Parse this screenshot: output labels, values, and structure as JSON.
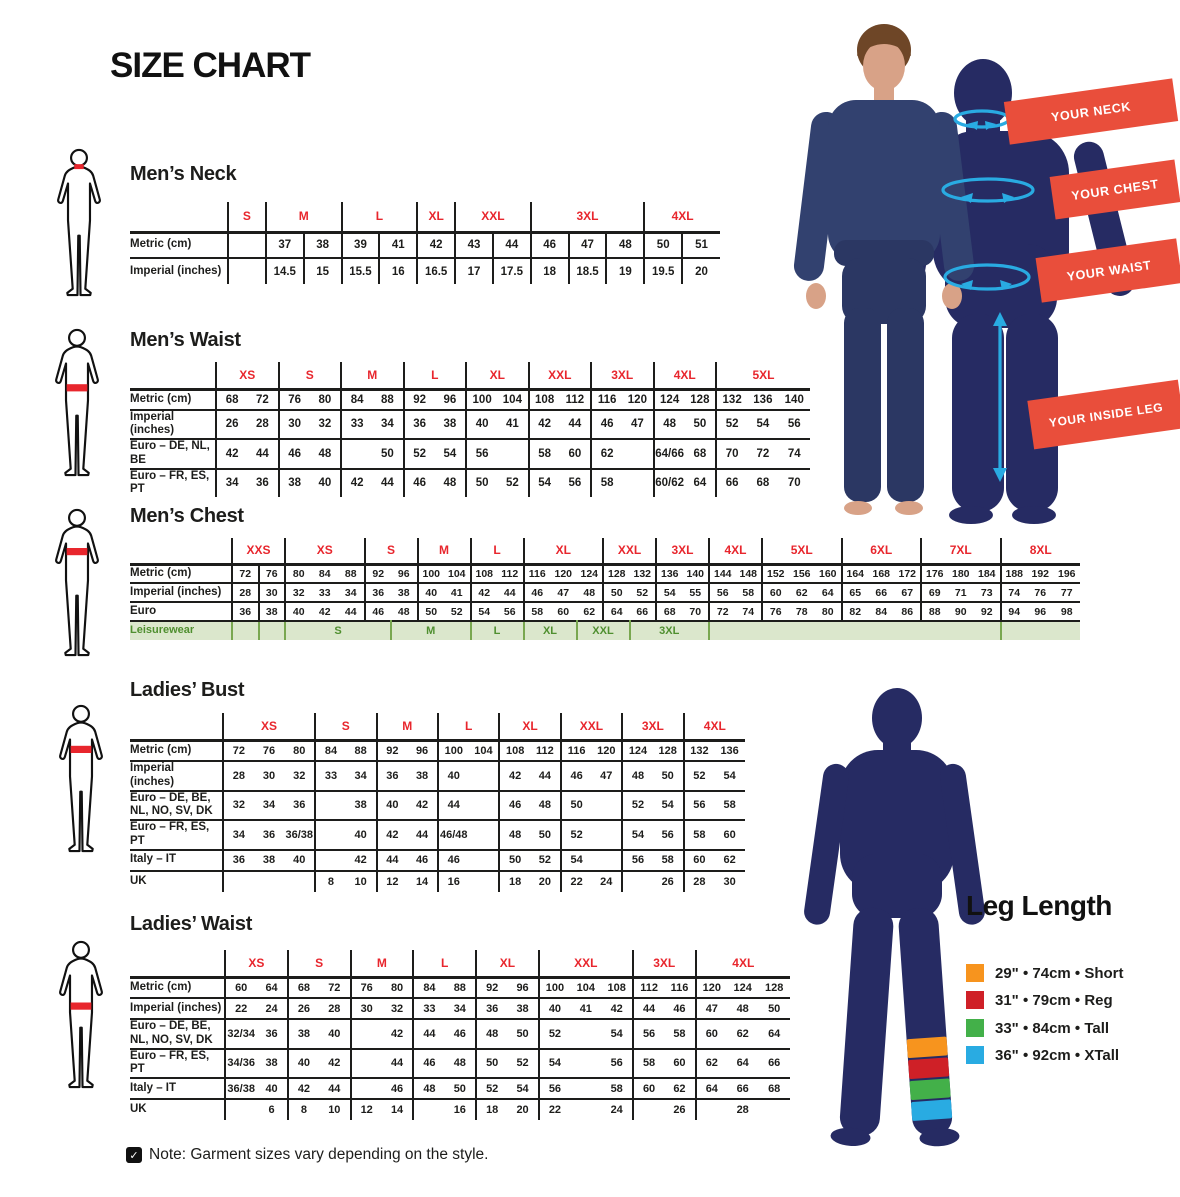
{
  "page_title": "SIZE CHART",
  "note_text": "Note: Garment sizes vary depending on the style.",
  "note_icon": "checkbox-checked",
  "colors": {
    "red": "#e8262d",
    "banner_red": "#e94e3b",
    "navy": "#262b63",
    "cyan": "#29abe2",
    "leisure_green": "#4f8f2f",
    "leisure_bg": "#dbe7cc",
    "leisure_border": "#79a750",
    "skin": "#d8a287",
    "hair": "#6e4627",
    "shirt": "#32416f",
    "pants": "#2b3763",
    "ink": "#1d1d1b"
  },
  "banners": [
    "YOUR NECK",
    "YOUR CHEST",
    "YOUR WAIST",
    "YOUR INSIDE LEG"
  ],
  "leg_length": {
    "title": "Leg Length",
    "items": [
      {
        "color": "#f7941e",
        "label": "29\" • 74cm • Short"
      },
      {
        "color": "#cf2027",
        "label": "31\" • 79cm • Reg"
      },
      {
        "color": "#43b049",
        "label": "33\" • 84cm • Tall"
      },
      {
        "color": "#29abe2",
        "label": "36\" • 92cm • XTall"
      }
    ]
  },
  "tables": [
    {
      "id": "mens-neck",
      "title": "Men’s Neck",
      "figure_band": "neck",
      "groups": [
        {
          "label": "S",
          "span": 1
        },
        {
          "label": "M",
          "span": 2
        },
        {
          "label": "L",
          "span": 2
        },
        {
          "label": "XL",
          "span": 1
        },
        {
          "label": "XXL",
          "span": 2
        },
        {
          "label": "3XL",
          "span": 3
        },
        {
          "label": "4XL",
          "span": 2
        }
      ],
      "rows": [
        {
          "label": "Metric (cm)",
          "cells": [
            "",
            "37",
            "38",
            "39",
            "41",
            "42",
            "43",
            "44",
            "46",
            "47",
            "48",
            "50",
            "51"
          ]
        },
        {
          "label": "Imperial (inches)",
          "cells": [
            "",
            "14.5",
            "15",
            "15.5",
            "16",
            "16.5",
            "17",
            "17.5",
            "18",
            "18.5",
            "19",
            "19.5",
            "20"
          ]
        }
      ]
    },
    {
      "id": "mens-waist",
      "title": "Men’s Waist",
      "figure_band": "waist",
      "groups": [
        {
          "label": "XS",
          "span": 2
        },
        {
          "label": "S",
          "span": 2
        },
        {
          "label": "M",
          "span": 2
        },
        {
          "label": "L",
          "span": 2
        },
        {
          "label": "XL",
          "span": 2
        },
        {
          "label": "XXL",
          "span": 2
        },
        {
          "label": "3XL",
          "span": 2
        },
        {
          "label": "4XL",
          "span": 2
        },
        {
          "label": "5XL",
          "span": 3
        }
      ],
      "rows": [
        {
          "label": "Metric (cm)",
          "cells": [
            "68",
            "72",
            "76",
            "80",
            "84",
            "88",
            "92",
            "96",
            "100",
            "104",
            "108",
            "112",
            "116",
            "120",
            "124",
            "128",
            "132",
            "136",
            "140"
          ]
        },
        {
          "label": "Imperial (inches)",
          "cells": [
            "26",
            "28",
            "30",
            "32",
            "33",
            "34",
            "36",
            "38",
            "40",
            "41",
            "42",
            "44",
            "46",
            "47",
            "48",
            "50",
            "52",
            "54",
            "56"
          ]
        },
        {
          "label": "Euro – DE, NL, BE",
          "cells": [
            "42",
            "44",
            "46",
            "48",
            "",
            "50",
            "52",
            "54",
            "56",
            "",
            "58",
            "60",
            "62",
            "",
            "64/66",
            "68",
            "70",
            "72",
            "74"
          ]
        },
        {
          "label": "Euro – FR, ES, PT",
          "cells": [
            "34",
            "36",
            "38",
            "40",
            "42",
            "44",
            "46",
            "48",
            "50",
            "52",
            "54",
            "56",
            "58",
            "",
            "60/62",
            "64",
            "66",
            "68",
            "70"
          ]
        }
      ]
    },
    {
      "id": "mens-chest",
      "title": "Men’s Chest",
      "figure_band": "chest",
      "groups": [
        {
          "label": "XXS",
          "span": 2
        },
        {
          "label": "XS",
          "span": 3
        },
        {
          "label": "S",
          "span": 2
        },
        {
          "label": "M",
          "span": 2
        },
        {
          "label": "L",
          "span": 2
        },
        {
          "label": "XL",
          "span": 3
        },
        {
          "label": "XXL",
          "span": 2
        },
        {
          "label": "3XL",
          "span": 2
        },
        {
          "label": "4XL",
          "span": 2
        },
        {
          "label": "5XL",
          "span": 3
        },
        {
          "label": "6XL",
          "span": 3
        },
        {
          "label": "7XL",
          "span": 3
        },
        {
          "label": "8XL",
          "span": 3
        }
      ],
      "rows": [
        {
          "label": "Metric (cm)",
          "cells": [
            "72",
            "76",
            "80",
            "84",
            "88",
            "92",
            "96",
            "100",
            "104",
            "108",
            "112",
            "116",
            "120",
            "124",
            "128",
            "132",
            "136",
            "140",
            "144",
            "148",
            "152",
            "156",
            "160",
            "164",
            "168",
            "172",
            "176",
            "180",
            "184",
            "188",
            "192",
            "196"
          ]
        },
        {
          "label": "Imperial (inches)",
          "cells": [
            "28",
            "30",
            "32",
            "33",
            "34",
            "36",
            "38",
            "40",
            "41",
            "42",
            "44",
            "46",
            "47",
            "48",
            "50",
            "52",
            "54",
            "55",
            "56",
            "58",
            "60",
            "62",
            "64",
            "65",
            "66",
            "67",
            "69",
            "71",
            "73",
            "74",
            "76",
            "77"
          ]
        },
        {
          "label": "Euro",
          "cells": [
            "36",
            "38",
            "40",
            "42",
            "44",
            "46",
            "48",
            "50",
            "52",
            "54",
            "56",
            "58",
            "60",
            "62",
            "64",
            "66",
            "68",
            "70",
            "72",
            "74",
            "76",
            "78",
            "80",
            "82",
            "84",
            "86",
            "88",
            "90",
            "92",
            "94",
            "96",
            "98"
          ]
        }
      ],
      "leisure_row": {
        "label": "Leisurewear",
        "cells": [
          {
            "label": "",
            "span": 1
          },
          {
            "label": "",
            "span": 1
          },
          {
            "label": "S",
            "span": 4
          },
          {
            "label": "M",
            "span": 3
          },
          {
            "label": "L",
            "span": 2
          },
          {
            "label": "XL",
            "span": 2
          },
          {
            "label": "XXL",
            "span": 2
          },
          {
            "label": "3XL",
            "span": 3
          },
          {
            "label": "",
            "span": 11
          },
          {
            "label": "",
            "span": 3
          }
        ]
      }
    },
    {
      "id": "ladies-bust",
      "title": "Ladies’ Bust",
      "figure_band": "bust",
      "groups": [
        {
          "label": "XS",
          "span": 3
        },
        {
          "label": "S",
          "span": 2
        },
        {
          "label": "M",
          "span": 2
        },
        {
          "label": "L",
          "span": 2
        },
        {
          "label": "XL",
          "span": 2
        },
        {
          "label": "XXL",
          "span": 2
        },
        {
          "label": "3XL",
          "span": 2
        },
        {
          "label": "4XL",
          "span": 2
        }
      ],
      "rows": [
        {
          "label": "Metric (cm)",
          "cells": [
            "72",
            "76",
            "80",
            "84",
            "88",
            "92",
            "96",
            "100",
            "104",
            "108",
            "112",
            "116",
            "120",
            "124",
            "128",
            "132",
            "136"
          ]
        },
        {
          "label": "Imperial (inches)",
          "cells": [
            "28",
            "30",
            "32",
            "33",
            "34",
            "36",
            "38",
            "40",
            "",
            "42",
            "44",
            "46",
            "47",
            "48",
            "50",
            "52",
            "54"
          ]
        },
        {
          "label": "Euro – DE, BE, NL, NO, SV, DK",
          "cells": [
            "32",
            "34",
            "36",
            "",
            "38",
            "40",
            "42",
            "44",
            "",
            "46",
            "48",
            "50",
            "",
            "52",
            "54",
            "56",
            "58"
          ]
        },
        {
          "label": "Euro – FR, ES, PT",
          "cells": [
            "34",
            "36",
            "36/38",
            "",
            "40",
            "42",
            "44",
            "46/48",
            "",
            "48",
            "50",
            "52",
            "",
            "54",
            "56",
            "58",
            "60"
          ]
        },
        {
          "label": "Italy – IT",
          "cells": [
            "36",
            "38",
            "40",
            "",
            "42",
            "44",
            "46",
            "46",
            "",
            "50",
            "52",
            "54",
            "",
            "56",
            "58",
            "60",
            "62"
          ]
        },
        {
          "label": "UK",
          "cells": [
            "",
            "",
            "",
            "8",
            "10",
            "12",
            "14",
            "16",
            "",
            "18",
            "20",
            "22",
            "24",
            "",
            "26",
            "28",
            "30"
          ]
        }
      ]
    },
    {
      "id": "ladies-waist",
      "title": "Ladies’ Waist",
      "figure_band": "hips",
      "groups": [
        {
          "label": "XS",
          "span": 2
        },
        {
          "label": "S",
          "span": 2
        },
        {
          "label": "M",
          "span": 2
        },
        {
          "label": "L",
          "span": 2
        },
        {
          "label": "XL",
          "span": 2
        },
        {
          "label": "XXL",
          "span": 3
        },
        {
          "label": "3XL",
          "span": 2
        },
        {
          "label": "4XL",
          "span": 3
        }
      ],
      "rows": [
        {
          "label": "Metric (cm)",
          "cells": [
            "60",
            "64",
            "68",
            "72",
            "76",
            "80",
            "84",
            "88",
            "92",
            "96",
            "100",
            "104",
            "108",
            "112",
            "116",
            "120",
            "124",
            "128"
          ]
        },
        {
          "label": "Imperial (inches)",
          "cells": [
            "22",
            "24",
            "26",
            "28",
            "30",
            "32",
            "33",
            "34",
            "36",
            "38",
            "40",
            "41",
            "42",
            "44",
            "46",
            "47",
            "48",
            "50"
          ]
        },
        {
          "label": "Euro – DE, BE, NL, NO, SV, DK",
          "cells": [
            "32/34",
            "36",
            "38",
            "40",
            "",
            "42",
            "44",
            "46",
            "48",
            "50",
            "52",
            "",
            "54",
            "56",
            "58",
            "60",
            "62",
            "64"
          ]
        },
        {
          "label": "Euro – FR, ES, PT",
          "cells": [
            "34/36",
            "38",
            "40",
            "42",
            "",
            "44",
            "46",
            "48",
            "50",
            "52",
            "54",
            "",
            "56",
            "58",
            "60",
            "62",
            "64",
            "66"
          ]
        },
        {
          "label": "Italy – IT",
          "cells": [
            "36/38",
            "40",
            "42",
            "44",
            "",
            "46",
            "48",
            "50",
            "52",
            "54",
            "56",
            "",
            "58",
            "60",
            "62",
            "64",
            "66",
            "68"
          ]
        },
        {
          "label": "UK",
          "cells": [
            "",
            "6",
            "8",
            "10",
            "12",
            "14",
            "",
            "16",
            "18",
            "20",
            "22",
            "",
            "24",
            "",
            "26",
            "",
            "28",
            ""
          ]
        }
      ]
    }
  ]
}
